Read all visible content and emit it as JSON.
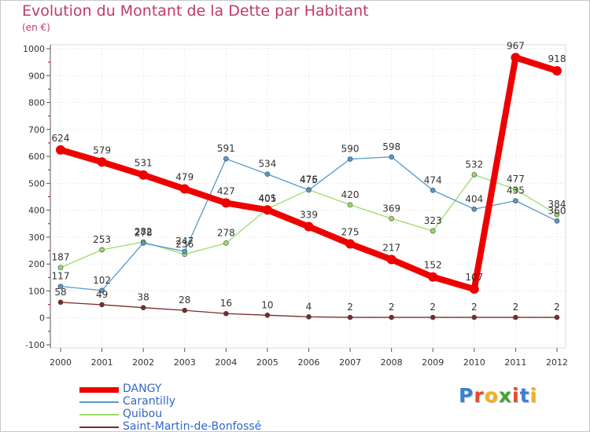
{
  "chart_data": {
    "type": "line",
    "title": "Evolution du Montant de la Dette par Habitant",
    "subtitle": "(en €)",
    "x": [
      "2000",
      "2001",
      "2002",
      "2003",
      "2004",
      "2005",
      "2006",
      "2007",
      "2008",
      "2009",
      "2010",
      "2011",
      "2012"
    ],
    "ylim": [
      -100,
      1000
    ],
    "yticks": [
      -100,
      0,
      100,
      200,
      300,
      400,
      500,
      600,
      700,
      800,
      900,
      1000
    ],
    "grid": true,
    "legend_position": "bottom-left",
    "series": [
      {
        "name": "DANGY",
        "color": "#ee0000",
        "values": [
          624,
          579,
          531,
          479,
          427,
          401,
          339,
          275,
          217,
          152,
          107,
          967,
          918
        ]
      },
      {
        "name": "Carantilly",
        "color": "#5599cc",
        "values": [
          117,
          102,
          278,
          247,
          591,
          534,
          475,
          590,
          598,
          474,
          404,
          435,
          360
        ]
      },
      {
        "name": "Quibou",
        "color": "#99dd66",
        "values": [
          187,
          253,
          282,
          236,
          278,
          405,
          476,
          420,
          369,
          323,
          532,
          477,
          384
        ]
      },
      {
        "name": "Saint-Martin-de-Bonfossé",
        "color": "#7a2a2a",
        "values": [
          58,
          49,
          38,
          28,
          16,
          10,
          4,
          2,
          2,
          2,
          2,
          2,
          2
        ]
      }
    ]
  },
  "logo": {
    "letters": [
      "P",
      "r",
      "o",
      "x",
      "i",
      "t",
      "i"
    ],
    "colors": [
      "#3a7fd5",
      "#e8492b",
      "#f2b11c",
      "#3fa535",
      "#e8492b",
      "#3a7fd5",
      "#f2b11c"
    ]
  }
}
